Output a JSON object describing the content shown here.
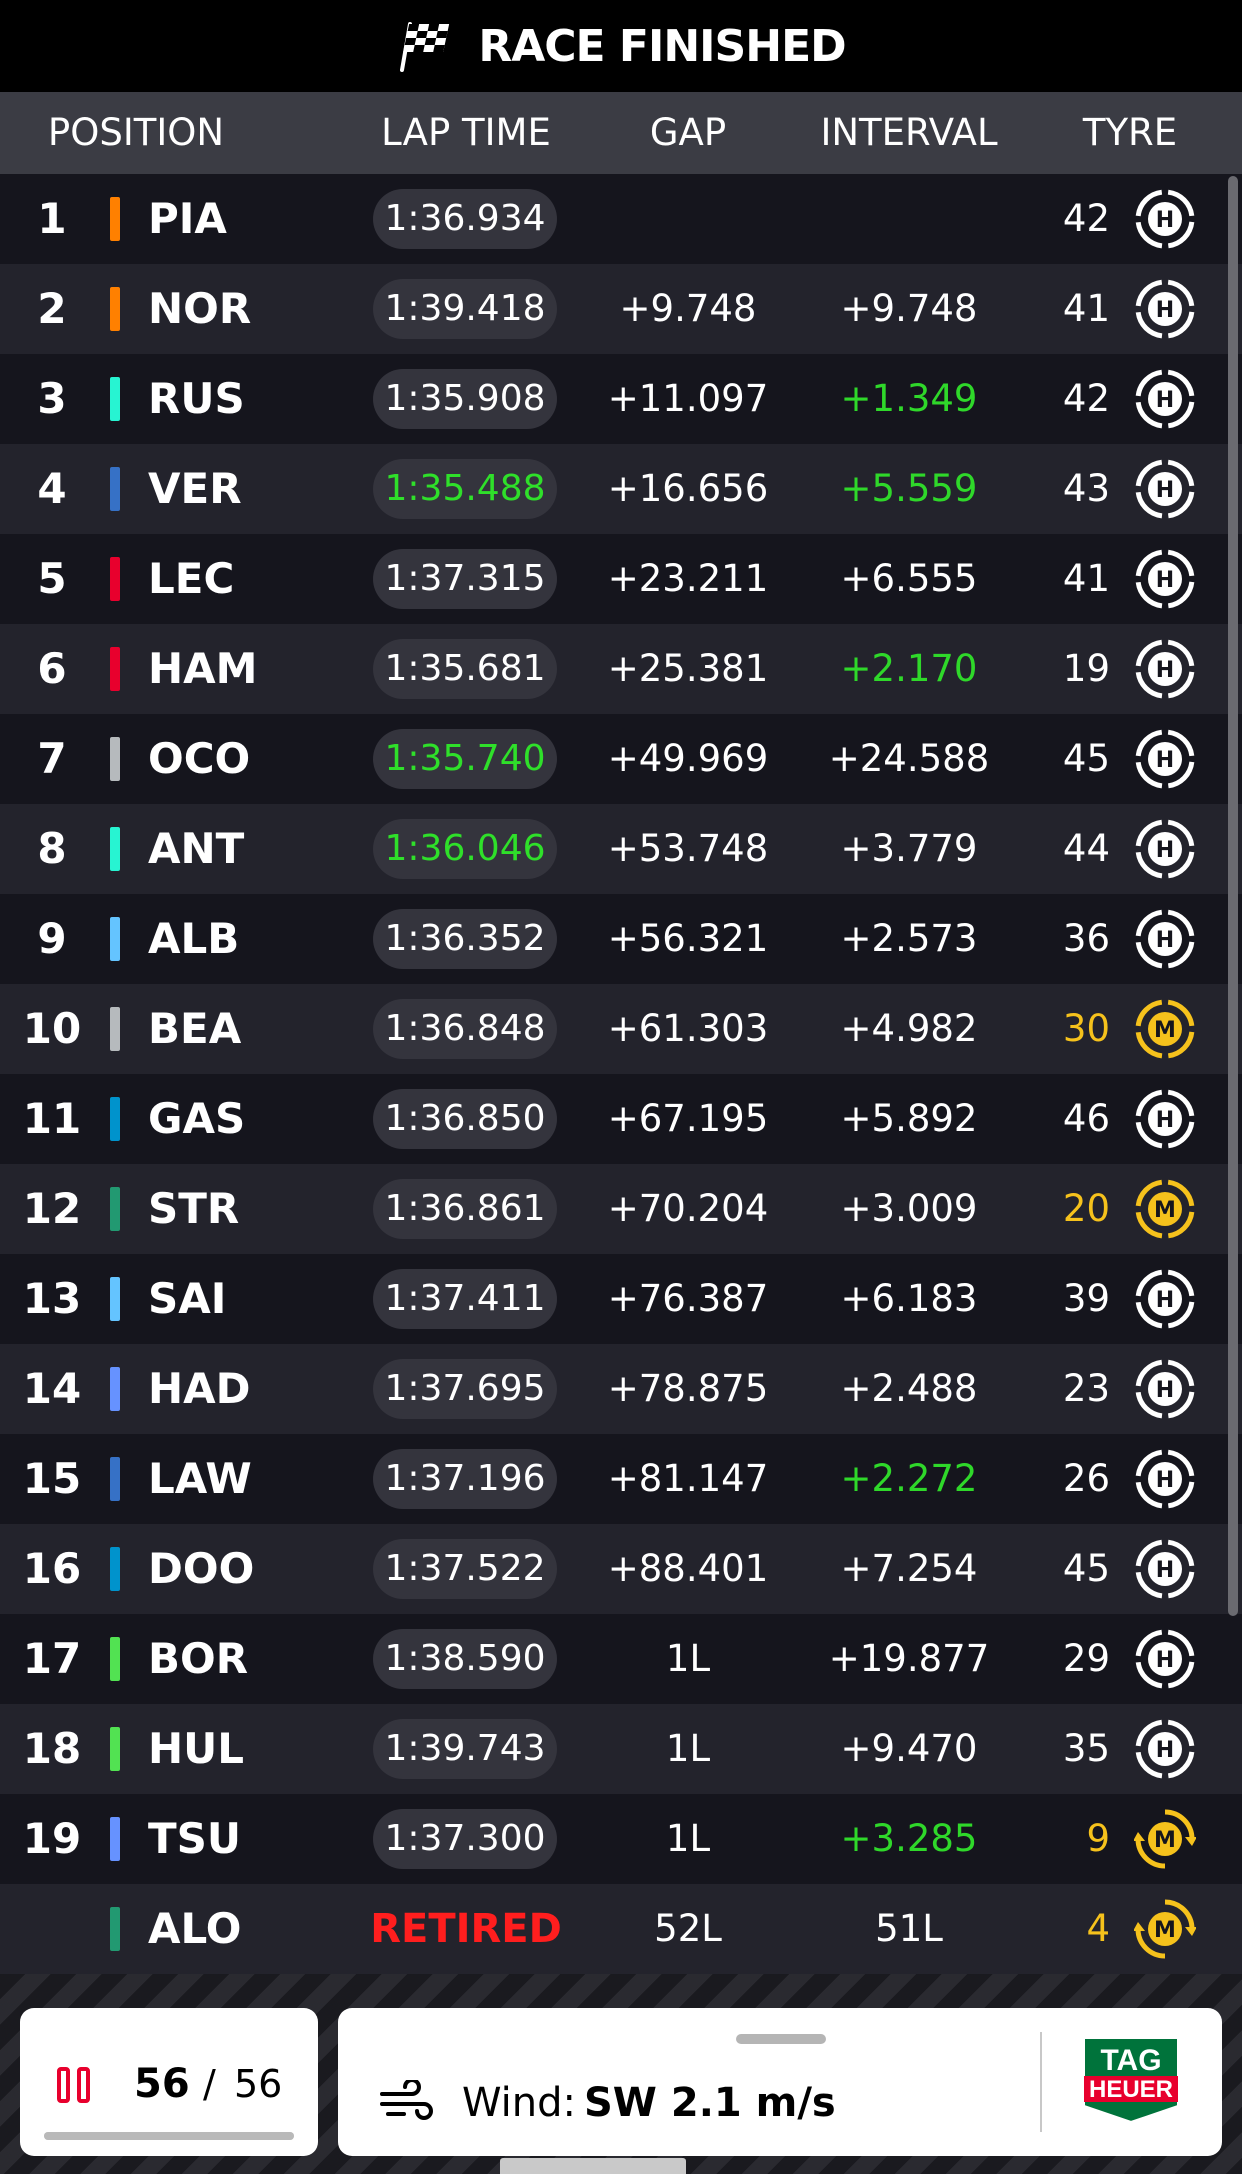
{
  "top_bar": {
    "title": "RACE FINISHED",
    "icon": "checkered-flag-icon"
  },
  "header": {
    "position": "POSITION",
    "lap_time": "LAP TIME",
    "gap": "GAP",
    "interval": "INTERVAL",
    "tyre": "TYRE"
  },
  "colors": {
    "fastest_green": "#2fe02a",
    "retired_red": "#ff1e1e",
    "medium_yellow": "#f6c21c",
    "hard_white": "#ffffff"
  },
  "rows": [
    {
      "pos": "1",
      "code": "PIA",
      "team_color": "#ff8000",
      "lap": "1:36.934",
      "fastest": false,
      "gap": "",
      "interval": "",
      "interval_green": false,
      "laps": "42",
      "tyre": "H"
    },
    {
      "pos": "2",
      "code": "NOR",
      "team_color": "#ff8000",
      "lap": "1:39.418",
      "fastest": false,
      "gap": "+9.748",
      "interval": "+9.748",
      "interval_green": false,
      "laps": "41",
      "tyre": "H"
    },
    {
      "pos": "3",
      "code": "RUS",
      "team_color": "#27f4d2",
      "lap": "1:35.908",
      "fastest": false,
      "gap": "+11.097",
      "interval": "+1.349",
      "interval_green": true,
      "laps": "42",
      "tyre": "H"
    },
    {
      "pos": "4",
      "code": "VER",
      "team_color": "#3671c6",
      "lap": "1:35.488",
      "fastest": true,
      "gap": "+16.656",
      "interval": "+5.559",
      "interval_green": true,
      "laps": "43",
      "tyre": "H"
    },
    {
      "pos": "5",
      "code": "LEC",
      "team_color": "#e8002d",
      "lap": "1:37.315",
      "fastest": false,
      "gap": "+23.211",
      "interval": "+6.555",
      "interval_green": false,
      "laps": "41",
      "tyre": "H"
    },
    {
      "pos": "6",
      "code": "HAM",
      "team_color": "#e8002d",
      "lap": "1:35.681",
      "fastest": false,
      "gap": "+25.381",
      "interval": "+2.170",
      "interval_green": true,
      "laps": "19",
      "tyre": "H"
    },
    {
      "pos": "7",
      "code": "OCO",
      "team_color": "#b6babd",
      "lap": "1:35.740",
      "fastest": true,
      "gap": "+49.969",
      "interval": "+24.588",
      "interval_green": false,
      "laps": "45",
      "tyre": "H"
    },
    {
      "pos": "8",
      "code": "ANT",
      "team_color": "#27f4d2",
      "lap": "1:36.046",
      "fastest": true,
      "gap": "+53.748",
      "interval": "+3.779",
      "interval_green": false,
      "laps": "44",
      "tyre": "H"
    },
    {
      "pos": "9",
      "code": "ALB",
      "team_color": "#64c4ff",
      "lap": "1:36.352",
      "fastest": false,
      "gap": "+56.321",
      "interval": "+2.573",
      "interval_green": false,
      "laps": "36",
      "tyre": "H"
    },
    {
      "pos": "10",
      "code": "BEA",
      "team_color": "#b6babd",
      "lap": "1:36.848",
      "fastest": false,
      "gap": "+61.303",
      "interval": "+4.982",
      "interval_green": false,
      "laps": "30",
      "tyre": "M"
    },
    {
      "pos": "11",
      "code": "GAS",
      "team_color": "#0093cc",
      "lap": "1:36.850",
      "fastest": false,
      "gap": "+67.195",
      "interval": "+5.892",
      "interval_green": false,
      "laps": "46",
      "tyre": "H"
    },
    {
      "pos": "12",
      "code": "STR",
      "team_color": "#229971",
      "lap": "1:36.861",
      "fastest": false,
      "gap": "+70.204",
      "interval": "+3.009",
      "interval_green": false,
      "laps": "20",
      "tyre": "M"
    },
    {
      "pos": "13",
      "code": "SAI",
      "team_color": "#64c4ff",
      "lap": "1:37.411",
      "fastest": false,
      "gap": "+76.387",
      "interval": "+6.183",
      "interval_green": false,
      "laps": "39",
      "tyre": "H"
    },
    {
      "pos": "14",
      "code": "HAD",
      "team_color": "#6692ff",
      "lap": "1:37.695",
      "fastest": false,
      "gap": "+78.875",
      "interval": "+2.488",
      "interval_green": false,
      "laps": "23",
      "tyre": "H"
    },
    {
      "pos": "15",
      "code": "LAW",
      "team_color": "#3671c6",
      "lap": "1:37.196",
      "fastest": false,
      "gap": "+81.147",
      "interval": "+2.272",
      "interval_green": true,
      "laps": "26",
      "tyre": "H"
    },
    {
      "pos": "16",
      "code": "DOO",
      "team_color": "#0093cc",
      "lap": "1:37.522",
      "fastest": false,
      "gap": "+88.401",
      "interval": "+7.254",
      "interval_green": false,
      "laps": "45",
      "tyre": "H"
    },
    {
      "pos": "17",
      "code": "BOR",
      "team_color": "#52e252",
      "lap": "1:38.590",
      "fastest": false,
      "gap": "1L",
      "interval": "+19.877",
      "interval_green": false,
      "laps": "29",
      "tyre": "H"
    },
    {
      "pos": "18",
      "code": "HUL",
      "team_color": "#52e252",
      "lap": "1:39.743",
      "fastest": false,
      "gap": "1L",
      "interval": "+9.470",
      "interval_green": false,
      "laps": "35",
      "tyre": "H"
    },
    {
      "pos": "19",
      "code": "TSU",
      "team_color": "#6692ff",
      "lap": "1:37.300",
      "fastest": false,
      "gap": "1L",
      "interval": "+3.285",
      "interval_green": true,
      "laps": "9",
      "tyre": "M",
      "tyre_pit": true
    },
    {
      "pos": "",
      "code": "ALO",
      "team_color": "#229971",
      "lap": "RETIRED",
      "retired": true,
      "fastest": false,
      "gap": "52L",
      "interval": "51L",
      "interval_green": false,
      "laps": "4",
      "tyre": "M",
      "tyre_pit": true
    }
  ],
  "lap_counter": {
    "current": "56",
    "separator": "/",
    "total": "56",
    "progress": 1.0
  },
  "weather": {
    "label": "Wind:",
    "value": "SW 2.1 m/s"
  },
  "sponsor": {
    "line1": "TAG",
    "line2": "HEUER"
  }
}
